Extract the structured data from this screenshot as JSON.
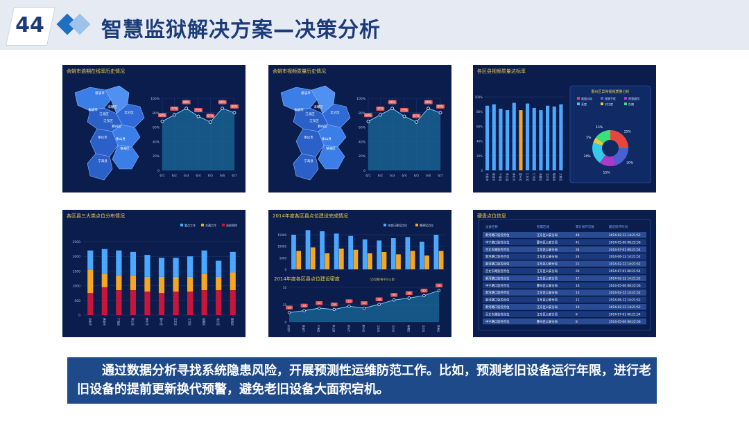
{
  "slide": {
    "number": "44",
    "title": "智慧监狱解决方案—决策分析",
    "description": "通过数据分析寻找系统隐患风险，开展预测性运维防范工作。比如，预测老旧设备运行年限，进行老旧设备的提前更新换代预警，避免老旧设备大面积宕机。"
  },
  "colors": {
    "panel_bg": "#0b1d4c",
    "accent_blue": "#4aa8ff",
    "accent_orange": "#f5a623",
    "accent_red": "#c8163a",
    "title_yellow": "#f0d04a"
  },
  "panel1": {
    "title": "余姚市逾期在线率历史情况",
    "map_labels": [
      "慈溪市",
      "余姚市",
      "江北区",
      "海曙区",
      "江东区",
      "鄞州区",
      "奉化市",
      "象山县",
      "宁海县",
      "北仑区",
      "镇海区"
    ]
  },
  "panel2": {
    "title": "余姚市视频质量历史情况",
    "map_labels": [
      "慈溪市",
      "余姚市",
      "江北区",
      "海曙区",
      "江东区",
      "鄞州区",
      "奉化市",
      "象山县",
      "宁海县",
      "北仑区",
      "镇海区"
    ]
  },
  "panel3": {
    "title": "各区县视频质量达标率",
    "donut_title": "鄞州区异常视频质量分析",
    "donut_legend": [
      "画面抖动",
      "视频干扰",
      "视频遮挡",
      "亮度",
      "对比度",
      "色偏"
    ]
  },
  "panel4": {
    "title": "各区县三大类点位分布情况",
    "legend": [
      "重点工作",
      "交通工作",
      "治安防控"
    ]
  },
  "panel5": {
    "title_top": "2014年度各区县点位建设完成情况",
    "legend_top": [
      "年度已建设点位",
      "需建设点位"
    ],
    "title_bottom": "2014年度各区县点位建设密度",
    "subtitle_bottom": "（点位数/每平方公里）"
  },
  "panel6": {
    "title": "硬盘点位信息",
    "headers": [
      "设备名称",
      "所属区域",
      "累计损坏次数",
      "最近损坏时间"
    ],
    "rows": [
      [
        "新河路口监控点位",
        "江东区公安分局",
        "48",
        "2014-02-12 14:21:52"
      ],
      [
        "中宁路口监控点位",
        "鄞州区公安分局",
        "41",
        "2014-05-06 08:22:56"
      ],
      [
        "百丈东路监控点位",
        "江东区公安分局",
        "34",
        "2014-07-01 06:21:54"
      ],
      [
        "新河路口监控点位",
        "江东区公安分局",
        "24",
        "2014-06-12 14:21:52"
      ],
      [
        "新河路口监控点位",
        "江东区公安分局",
        "21",
        "2014-02-12 14:21:52"
      ],
      [
        "百丈东路监控点位",
        "江东区公安分局",
        "20",
        "2014-07-01 06:21:54"
      ],
      [
        "新河路口监控点位",
        "江东区公安分局",
        "17",
        "2014-02-12 14:21:52"
      ],
      [
        "中宁路口监控点位",
        "鄞州区公安分局",
        "16",
        "2014-05-06 08:22:56"
      ],
      [
        "新河路口监控点位",
        "江东区公安分局",
        "13",
        "2014-02-12 14:21:52"
      ],
      [
        "新河路口监控点位",
        "江东区公安分局",
        "11",
        "2014-06-12 14:21:52"
      ],
      [
        "新河路口监控点位",
        "江东区公安分局",
        "10",
        "2014-02-12 14:21:52"
      ],
      [
        "百丈东路监控点位",
        "江东区公安分局",
        "9",
        "2014-07-01 06:21:54"
      ],
      [
        "中宁路口监控点位",
        "鄞州区公安分局",
        "8",
        "2014-05-06 08:22:56"
      ]
    ]
  },
  "chart_data": [
    {
      "type": "area",
      "categories": [
        "6/1",
        "6/2",
        "6/3",
        "6/4",
        "6/5",
        "6/6",
        "6/7"
      ],
      "values": [
        68,
        77,
        86,
        75,
        67,
        86,
        80
      ],
      "point_labels": [
        "68%",
        "77%",
        "86%",
        "75%",
        "67%",
        "86%",
        "80%"
      ],
      "yticks": [
        "0",
        "20%",
        "40%",
        "60%",
        "80%",
        "100%"
      ],
      "ylim": [
        0,
        100
      ]
    },
    {
      "type": "area",
      "categories": [
        "6/1",
        "6/2",
        "6/3",
        "6/4",
        "6/5",
        "6/6",
        "6/7"
      ],
      "values": [
        68,
        77,
        86,
        75,
        67,
        86,
        80
      ],
      "point_labels": [
        "68%",
        "77%",
        "86%",
        "75%",
        "67%",
        "86%",
        "80%"
      ],
      "yticks": [
        "0",
        "20%",
        "40%",
        "60%",
        "80%",
        "100%"
      ],
      "ylim": [
        0,
        100
      ]
    },
    {
      "type": "bar",
      "categories": [
        "余姚市",
        "慈溪市",
        "宁海县",
        "象山县",
        "奉化市",
        "鄞州区",
        "江东区",
        "江北区",
        "海曙区",
        "北仑区",
        "镇海区",
        "大榭区"
      ],
      "values": [
        88,
        90,
        84,
        82,
        92,
        82,
        91,
        85,
        82,
        88,
        87,
        90
      ],
      "highlight_index": 5,
      "yticks": [
        "0",
        "20%",
        "40%",
        "60%",
        "80%",
        "100%"
      ],
      "ylim": [
        0,
        100
      ]
    },
    {
      "type": "pie",
      "labels": [
        "画面抖动",
        "视频干扰",
        "视频遮挡",
        "亮度",
        "对比度",
        "色偏"
      ],
      "values": [
        25,
        20,
        15,
        20,
        5,
        15
      ],
      "slice_labels": [
        "25%",
        "20%",
        "15%",
        "20%",
        "5%",
        "15%"
      ],
      "colors": [
        "#e8453c",
        "#4b61d1",
        "#a83cc8",
        "#38c8e8",
        "#e8c83c",
        "#3ce07a"
      ]
    },
    {
      "type": "bar",
      "stacked": true,
      "categories": [
        "余姚市",
        "慈溪市",
        "宁海县",
        "象山县",
        "奉化市",
        "鄞州区",
        "江东区",
        "江北区",
        "海曙区",
        "北仑区",
        "镇海区"
      ],
      "series": [
        {
          "name": "治安防控",
          "values": [
            750,
            950,
            850,
            850,
            800,
            750,
            800,
            800,
            850,
            850,
            850
          ]
        },
        {
          "name": "交通工作",
          "values": [
            800,
            450,
            500,
            500,
            500,
            550,
            500,
            500,
            550,
            450,
            600
          ]
        },
        {
          "name": "重点工作",
          "values": [
            650,
            850,
            850,
            800,
            750,
            650,
            650,
            700,
            800,
            550,
            700
          ]
        }
      ],
      "yticks": [
        "0",
        "500",
        "1000",
        "1500",
        "2000",
        "2500"
      ],
      "ylim": [
        0,
        2500
      ]
    },
    {
      "type": "bar",
      "categories": [
        "余姚市",
        "慈溪市",
        "宁海县",
        "象山县",
        "奉化市",
        "鄞州区",
        "江东区",
        "江北区",
        "海曙区",
        "北仑区",
        "镇海区"
      ],
      "series": [
        {
          "name": "年度已建设点位",
          "values": [
            15000,
            17000,
            16500,
            15500,
            14500,
            13000,
            12500,
            13500,
            14000,
            12000,
            15000
          ]
        },
        {
          "name": "需建设点位",
          "values": [
            8000,
            9500,
            7000,
            9000,
            8500,
            7000,
            7500,
            6500,
            8000,
            6000,
            8000
          ]
        }
      ],
      "yticks": [
        "0",
        "5000",
        "10000",
        "15000"
      ],
      "ylim": [
        0,
        18000
      ]
    },
    {
      "type": "area",
      "categories": [
        "余姚市",
        "慈溪市",
        "宁海县",
        "象山县",
        "奉化市",
        "鄞州区",
        "江东区",
        "江北区",
        "海曙区",
        "北仑区",
        "镇海区"
      ],
      "values": [
        15,
        18,
        22,
        20,
        25,
        22,
        28,
        35,
        38,
        42,
        50
      ],
      "point_labels": [
        "15",
        "18",
        "22",
        "20",
        "25",
        "22",
        "28",
        "35",
        "38",
        "42",
        "50"
      ],
      "yticks": [
        "0",
        "25",
        "50"
      ],
      "ylim": [
        0,
        55
      ]
    }
  ]
}
